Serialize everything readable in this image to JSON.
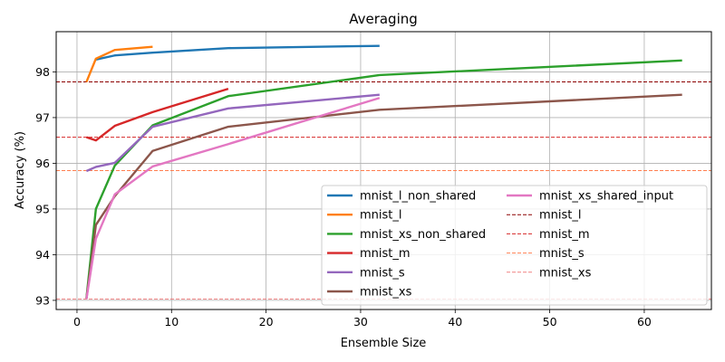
{
  "chart_data": {
    "type": "line",
    "title": "Averaging",
    "xlabel": "Ensemble Size",
    "ylabel": "Accuracy (%)",
    "xlim": [
      -2.2,
      67.1
    ],
    "ylim": [
      92.8,
      98.88
    ],
    "xticks": [
      0,
      10,
      20,
      30,
      40,
      50,
      60
    ],
    "yticks": [
      93,
      94,
      95,
      96,
      97,
      98
    ],
    "grid": true,
    "legend_position": "lower-right",
    "legend_columns": 2,
    "series": [
      {
        "name": "mnist_l_non_shared",
        "color": "#1f77b4",
        "style": "solid",
        "x": [
          2,
          4,
          8,
          16,
          32
        ],
        "y": [
          98.27,
          98.36,
          98.42,
          98.52,
          98.57
        ]
      },
      {
        "name": "mnist_l",
        "color": "#ff7f0e",
        "style": "solid",
        "x": [
          1,
          2,
          4,
          8
        ],
        "y": [
          97.78,
          98.29,
          98.48,
          98.55
        ]
      },
      {
        "name": "mnist_xs_non_shared",
        "color": "#2ca02c",
        "style": "solid",
        "x": [
          1,
          2,
          4,
          8,
          16,
          32,
          64
        ],
        "y": [
          93.05,
          95.0,
          95.95,
          96.83,
          97.47,
          97.93,
          98.25
        ]
      },
      {
        "name": "mnist_m",
        "color": "#d62728",
        "style": "solid",
        "x": [
          1,
          2,
          4,
          8,
          16
        ],
        "y": [
          96.57,
          96.5,
          96.82,
          97.12,
          97.63
        ]
      },
      {
        "name": "mnist_s",
        "color": "#9467bd",
        "style": "solid",
        "x": [
          1,
          2,
          4,
          8,
          16,
          32
        ],
        "y": [
          95.83,
          95.92,
          96.01,
          96.8,
          97.2,
          97.5
        ]
      },
      {
        "name": "mnist_xs",
        "color": "#8c564b",
        "style": "solid",
        "x": [
          1,
          2,
          4,
          8,
          16,
          32,
          64
        ],
        "y": [
          93.03,
          94.65,
          95.28,
          96.27,
          96.8,
          97.17,
          97.5
        ]
      },
      {
        "name": "mnist_xs_shared_input",
        "color": "#e377c2",
        "style": "solid",
        "x": [
          1,
          2,
          4,
          8,
          16,
          32
        ],
        "y": [
          93.03,
          94.35,
          95.32,
          95.93,
          96.42,
          97.43
        ]
      },
      {
        "name": "mnist_l",
        "color": "#8b0000",
        "style": "dashed",
        "hline": 97.78
      },
      {
        "name": "mnist_m",
        "color": "#d62728",
        "style": "dashed",
        "hline": 96.57
      },
      {
        "name": "mnist_s",
        "color": "#ff7f50",
        "style": "dashed",
        "hline": 95.84
      },
      {
        "name": "mnist_xs",
        "color": "#f08080",
        "style": "dashed",
        "hline": 93.03
      }
    ]
  }
}
